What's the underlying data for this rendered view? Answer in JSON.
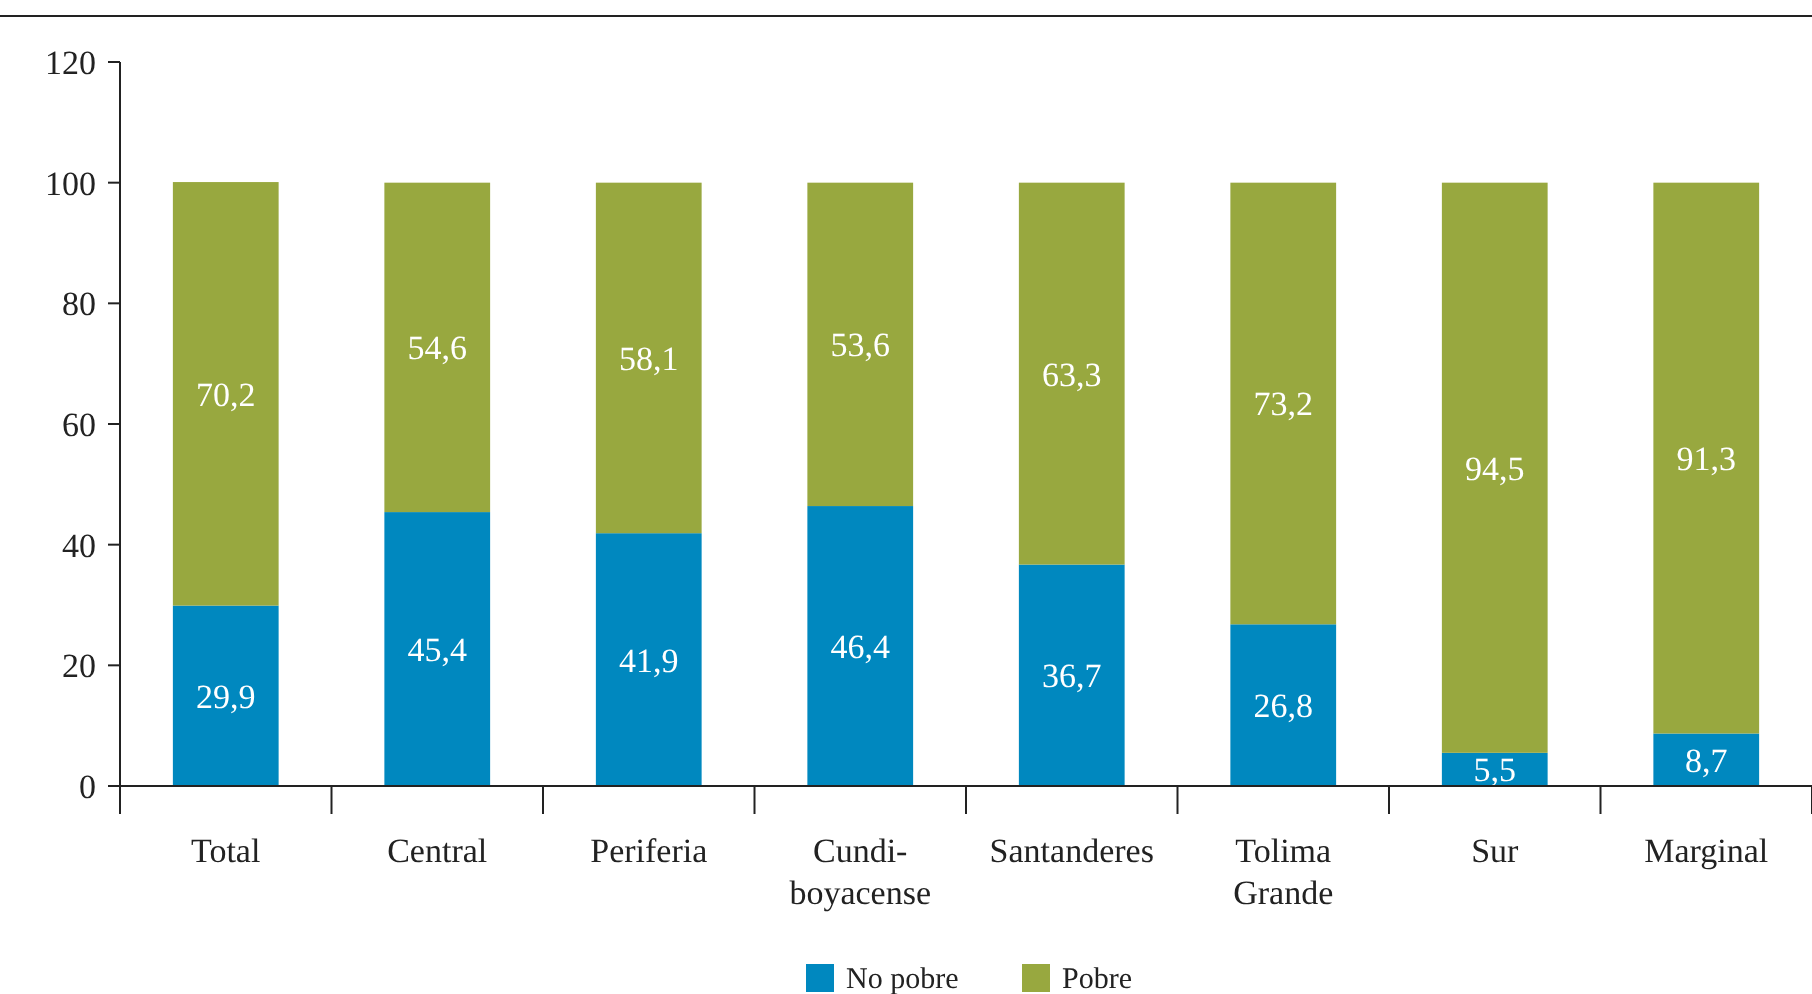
{
  "chart_data": {
    "type": "bar",
    "stacked": true,
    "categories": [
      "Total",
      "Central",
      "Periferia",
      "Cundi-boyacense",
      "Santanderes",
      "Tolima Grande",
      "Sur",
      "Marginal"
    ],
    "series": [
      {
        "name": "No pobre",
        "color": "#0088bf",
        "values": [
          29.9,
          45.4,
          41.9,
          46.4,
          36.7,
          26.8,
          5.5,
          8.7
        ],
        "value_labels": [
          "29,9",
          "45,4",
          "41,9",
          "46,4",
          "36,7",
          "26,8",
          "5,5",
          "8,7"
        ]
      },
      {
        "name": "Pobre",
        "color": "#98a83f",
        "values": [
          70.2,
          54.6,
          58.1,
          53.6,
          63.3,
          73.2,
          94.5,
          91.3
        ],
        "value_labels": [
          "70,2",
          "54,6",
          "58,1",
          "53,6",
          "63,3",
          "73,2",
          "94,5",
          "91,3"
        ]
      }
    ],
    "ylim": [
      0,
      120
    ],
    "yticks": [
      0,
      20,
      40,
      60,
      80,
      100,
      120
    ],
    "grid": false,
    "legend": "bottom"
  }
}
